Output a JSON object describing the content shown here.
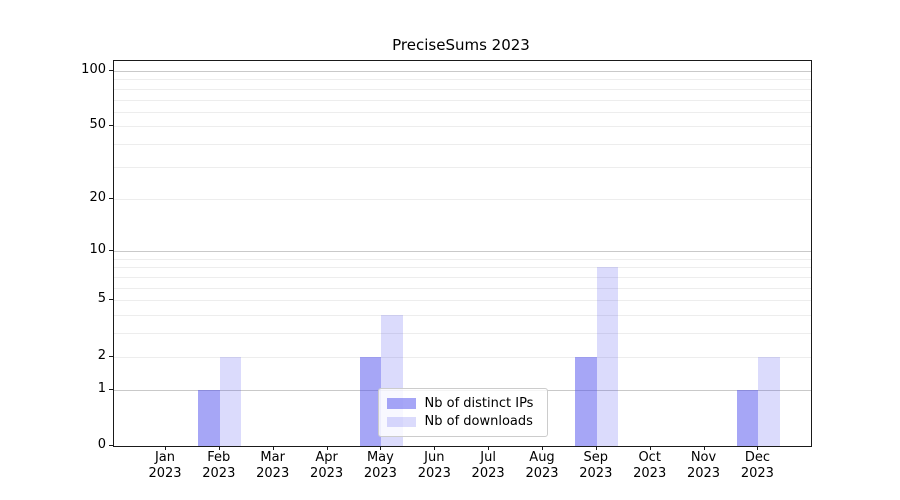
{
  "title": "PreciseSums 2023",
  "chart_data": {
    "type": "bar",
    "title": "PreciseSums 2023",
    "categories": [
      "Jan 2023",
      "Feb 2023",
      "Mar 2023",
      "Apr 2023",
      "May 2023",
      "Jun 2023",
      "Jul 2023",
      "Aug 2023",
      "Sep 2023",
      "Oct 2023",
      "Nov 2023",
      "Dec 2023"
    ],
    "series": [
      {
        "name": "Nb of distinct IPs",
        "color": "rgba(77,77,238,0.5)",
        "values": [
          0,
          1,
          0,
          0,
          2,
          0,
          0,
          0,
          2,
          0,
          0,
          1
        ]
      },
      {
        "name": "Nb of downloads",
        "color": "rgba(77,77,238,0.2)",
        "values": [
          0,
          2,
          0,
          0,
          4,
          0,
          0,
          0,
          8,
          0,
          0,
          2
        ]
      }
    ],
    "xlabel": "",
    "ylabel": "",
    "y_scale": "log10(1+x)",
    "ylim": [
      0,
      113
    ],
    "y_ticks": [
      0,
      1,
      2,
      5,
      10,
      20,
      50,
      100
    ],
    "y_major_gridlines": [
      1,
      10,
      100
    ],
    "y_minor_gridlines": [
      2,
      3,
      4,
      5,
      6,
      7,
      8,
      9,
      20,
      30,
      40,
      50,
      60,
      70,
      80,
      90
    ],
    "grid": "horizontal",
    "legend_position": "lower center"
  },
  "colors": {
    "bar_distinct_ips": "rgba(77,77,238,0.5)",
    "bar_downloads": "rgba(77,77,238,0.2)",
    "grid_major": "#c9c9c9",
    "grid_minor": "#ededed",
    "spine": "#1a1a1a",
    "legend_border": "#cccccc"
  }
}
